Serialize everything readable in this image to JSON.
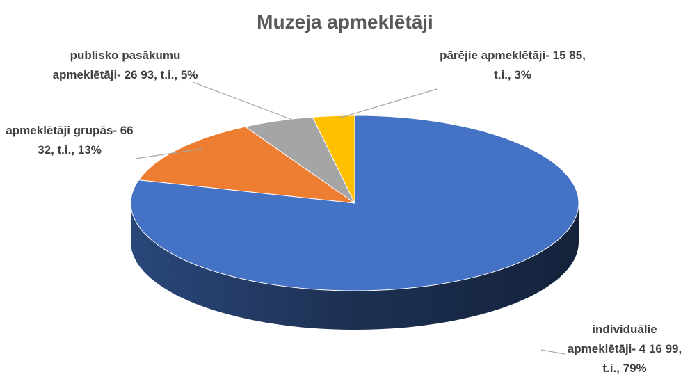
{
  "chart_data": {
    "type": "pie",
    "title": "Muzeja apmeklētāji",
    "categories": [
      "individuālie apmeklētāji- 4 16 99, t.i., 79%",
      "apmeklētāji grupās- 66 32, t.i., 13%",
      "publisko pasākumu apmeklētāji- 26 93, t.i., 5%",
      "pārējie apmeklētāji- 15 85, t.i., 3%"
    ],
    "values": [
      41699,
      6632,
      2693,
      1585
    ],
    "colors": [
      "#4472c4",
      "#ed7d31",
      "#a5a5a5",
      "#ffc000"
    ]
  }
}
